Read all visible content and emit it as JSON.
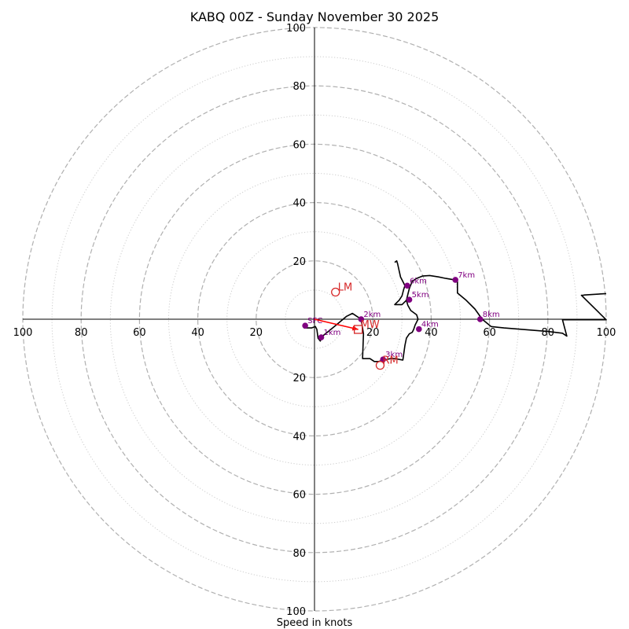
{
  "chart_data": {
    "type": "hodograph",
    "title": "KABQ 00Z - Sunday November 30 2025",
    "xlabel": "Speed in knots",
    "xlim": [
      -100,
      100
    ],
    "ylim": [
      -100,
      100
    ],
    "rings_major": [
      20,
      40,
      60,
      80,
      100
    ],
    "rings_minor": [
      10,
      30,
      50,
      70,
      90
    ],
    "tick_labels": {
      "x_left": [
        "100",
        "80",
        "60",
        "40",
        "20"
      ],
      "x_right": [
        "20",
        "40",
        "60",
        "80",
        "100"
      ],
      "y_top": [
        "100",
        "80",
        "60",
        "40",
        "20"
      ],
      "y_bottom": [
        "20",
        "40",
        "60",
        "80",
        "100"
      ]
    },
    "trace": {
      "u": [
        -3.5,
        -3.5,
        -1,
        0.3,
        0.8,
        1.2,
        2,
        2.5,
        5,
        8,
        11,
        13,
        14.5,
        16,
        16.8,
        16.5,
        16.5,
        19,
        20.5,
        22,
        24,
        26,
        27.5,
        30.3,
        31,
        31.5,
        32.5,
        33.5,
        34,
        34.5,
        35.5,
        35,
        33,
        32,
        31.5,
        32,
        32.5,
        33.5,
        35,
        37,
        39.5,
        42.5,
        45,
        48,
        49,
        49,
        52,
        55,
        57.5,
        60.5,
        65,
        70,
        75,
        80,
        85,
        86.5,
        85,
        85.5,
        86,
        87,
        88,
        90,
        91,
        92.5,
        95,
        98,
        100,
        91.5,
        92,
        92.5,
        100
      ],
      "v": [
        -2.5,
        -3,
        -3,
        -2.5,
        -3.5,
        -6.5,
        -7.5,
        -6,
        -4,
        -1.5,
        1,
        2,
        1,
        0,
        -5,
        -13,
        -13.5,
        -13.5,
        -14.5,
        -14.5,
        -14,
        -13.5,
        -13.5,
        -14,
        -9,
        -6.5,
        -5,
        -4.5,
        -3.5,
        -2,
        0,
        1.5,
        3,
        4.8,
        6.5,
        8.5,
        10.5,
        13,
        14,
        14.8,
        15,
        14.5,
        14,
        13.5,
        13,
        9,
        6.5,
        3.5,
        0,
        -2.5,
        -3,
        -3.4,
        -3.8,
        -4.2,
        -4.8,
        -5.8,
        -0.2,
        -0.2,
        -0.2,
        -0.2,
        -0.2,
        -0.2,
        -0.2,
        -0.2,
        -0.2,
        -0.2,
        -0.2,
        8.2,
        8.2,
        8.3,
        8.8
      ]
    },
    "trace_extra": {
      "u": [
        31.5,
        30,
        27.5,
        29,
        30,
        30.5,
        31,
        30.5,
        29.5,
        28.5,
        28.2,
        27.5
      ],
      "v": [
        6.5,
        5,
        5,
        6.5,
        8,
        10,
        11.5,
        12.5,
        14.5,
        19,
        20,
        19.5
      ]
    },
    "height_points": [
      {
        "label": "SFC",
        "u": -3.2,
        "v": -2.2
      },
      {
        "label": "1km",
        "u": 2.3,
        "v": -6.2
      },
      {
        "label": "2km",
        "u": 16,
        "v": 0
      },
      {
        "label": "3km",
        "u": 23.5,
        "v": -13.8
      },
      {
        "label": "4km",
        "u": 35.8,
        "v": -3.4
      },
      {
        "label": "5km",
        "u": 32.5,
        "v": 6.7
      },
      {
        "label": "6km",
        "u": 31.8,
        "v": 11.5
      },
      {
        "label": "7km",
        "u": 48.3,
        "v": 13.5
      },
      {
        "label": "8km",
        "u": 56.8,
        "v": 0
      }
    ],
    "motions": [
      {
        "label": "LM",
        "u": 7.2,
        "v": 9.3,
        "marker": "circle"
      },
      {
        "label": "RM",
        "u": 22.5,
        "v": -15.8,
        "marker": "circle"
      },
      {
        "label": "MW",
        "u": 15,
        "v": -3.5,
        "marker": "square"
      }
    ],
    "shear_vector": {
      "u0": 0,
      "v0": 0,
      "u1": 15,
      "v1": -3.5
    },
    "colors": {
      "trace": "#000000",
      "points": "#800080",
      "motion": "#d62728",
      "shear": "#ff0000",
      "grid": "#b0b0b0",
      "grid_minor": "#cccccc"
    }
  }
}
